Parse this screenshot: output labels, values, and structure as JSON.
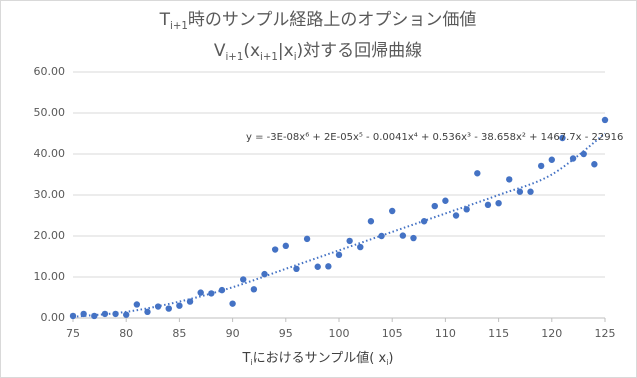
{
  "chart_data": {
    "type": "scatter",
    "title": [
      [
        "T",
        "i+1",
        "時のサンプル経路上のオプション価値"
      ],
      [
        "V",
        "i+1",
        "(x",
        "i+1",
        "|x",
        "i",
        ")対する回帰曲線"
      ]
    ],
    "x_label": [
      "T",
      "i",
      "におけるサンプル値( x",
      "i",
      ")"
    ],
    "color": "#4472c4",
    "x": [
      75,
      76,
      77,
      78,
      79,
      80,
      81,
      82,
      83,
      84,
      85,
      86,
      87,
      88,
      89,
      90,
      91,
      92,
      93,
      94,
      95,
      96,
      97,
      98,
      99,
      100,
      101,
      102,
      103,
      104,
      105,
      106,
      107,
      108,
      109,
      110,
      111,
      112,
      113,
      114,
      115,
      116,
      117,
      118,
      119,
      120,
      121,
      122,
      123,
      124,
      125
    ],
    "values": [
      0.5,
      1.0,
      0.5,
      1.0,
      1.0,
      0.8,
      3.3,
      1.5,
      2.8,
      2.3,
      3.0,
      4.0,
      6.2,
      6.0,
      6.8,
      3.5,
      9.4,
      7.0,
      10.7,
      16.7,
      17.6,
      12.0,
      19.3,
      12.5,
      12.6,
      15.4,
      18.8,
      17.3,
      23.6,
      20.0,
      26.1,
      20.1,
      19.5,
      23.6,
      27.3,
      28.6,
      25.0,
      26.5,
      35.3,
      27.6,
      28.0,
      33.8,
      30.8,
      30.8,
      37.1,
      38.6,
      43.9,
      38.9,
      40.0,
      37.5,
      48.3
    ],
    "trendline": {
      "equation": "y = -3E-08x⁶ + 2E-05x⁵ - 0.0041x⁴ + 0.536x³ - 38.658x² + 1467.7x - 22916",
      "x": [
        75,
        80,
        85,
        90,
        95,
        100,
        105,
        110,
        115,
        120,
        125
      ],
      "values": [
        0.3,
        1.5,
        4.0,
        7.5,
        12.0,
        16.5,
        21.0,
        25.5,
        30.0,
        35.0,
        45.0
      ]
    },
    "xlim": [
      75,
      125
    ],
    "xticks": [
      75,
      80,
      85,
      90,
      95,
      100,
      105,
      110,
      115,
      120,
      125
    ],
    "ylim": [
      0,
      60
    ],
    "yticks": [
      {
        "value": 0,
        "label": "0.00"
      },
      {
        "value": 10,
        "label": "10.00"
      },
      {
        "value": 20,
        "label": "20.00"
      },
      {
        "value": 30,
        "label": "30.00"
      },
      {
        "value": 40,
        "label": "40.00"
      },
      {
        "value": 50,
        "label": "50.00"
      },
      {
        "value": 60,
        "label": "60.00"
      }
    ],
    "grid": true
  }
}
